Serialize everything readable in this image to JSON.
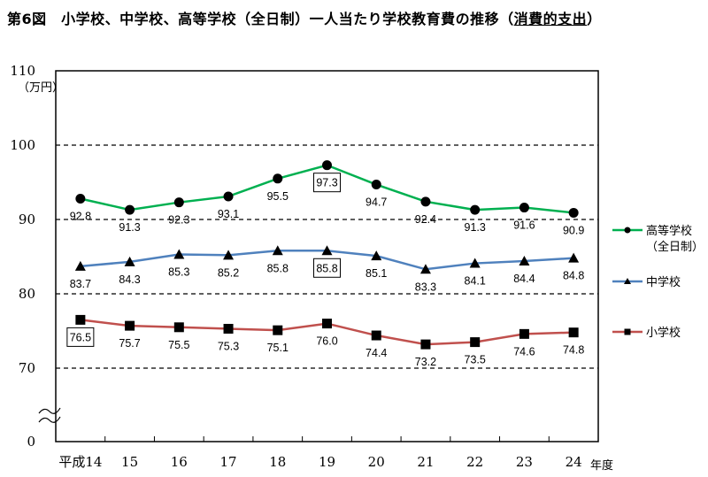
{
  "title": {
    "main": "第6図　小学校、中学校、高等学校（全日制）一人当たり学校教育費の推移（",
    "underlined": "消費的支出",
    "close": "）"
  },
  "chart_data": {
    "type": "line",
    "title": "第6図　小学校、中学校、高等学校（全日制）一人当たり学校教育費の推移（消費的支出）",
    "ylabel": "（万円）",
    "xlabel": "年度",
    "categories": [
      "平成14",
      "15",
      "16",
      "17",
      "18",
      "19",
      "20",
      "21",
      "22",
      "23",
      "24"
    ],
    "yticks": [
      "0",
      "70",
      "80",
      "90",
      "100",
      "110"
    ],
    "ylim": [
      70,
      110
    ],
    "axis_break": true,
    "grid": "horizontal dashed",
    "legend_placement": "right",
    "series": [
      {
        "name": "高等学校",
        "name_sub": "（全日制）",
        "color": "#00b050",
        "marker": "circle",
        "values": [
          92.8,
          91.3,
          92.3,
          93.1,
          95.5,
          97.3,
          94.7,
          92.4,
          91.3,
          91.6,
          90.9
        ],
        "boxed_index": 5
      },
      {
        "name": "中学校",
        "color": "#4f81bd",
        "marker": "triangle",
        "values": [
          83.7,
          84.3,
          85.3,
          85.2,
          85.8,
          85.8,
          85.1,
          83.3,
          84.1,
          84.4,
          84.8
        ],
        "boxed_index": 5
      },
      {
        "name": "小学校",
        "color": "#c0504d",
        "marker": "square",
        "values": [
          76.5,
          75.7,
          75.5,
          75.3,
          75.1,
          76.0,
          74.4,
          73.2,
          73.5,
          74.6,
          74.8
        ],
        "boxed_index": 0
      }
    ]
  }
}
